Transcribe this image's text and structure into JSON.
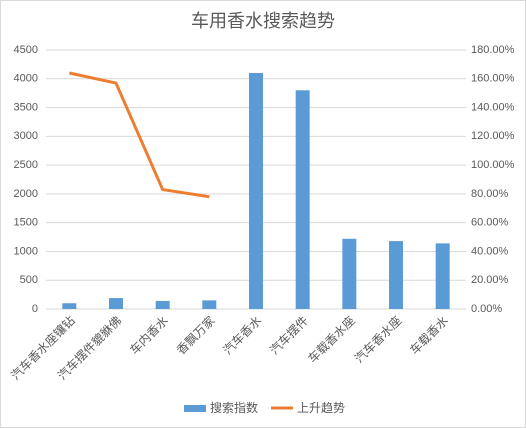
{
  "chart_data": {
    "type": "bar",
    "title": "车用香水搜索趋势",
    "categories": [
      "汽车香水座镶钻",
      "汽车摆件貔貅佛",
      "车内香水",
      "香飘万家",
      "汽车香水",
      "汽车摆件",
      "车载香水座",
      "汽车香水座",
      "车载香水"
    ],
    "series": [
      {
        "name": "搜索指数",
        "type": "bar",
        "color": "#5b9bd5",
        "values": [
          100,
          190,
          140,
          150,
          4100,
          3800,
          1220,
          1180,
          1140
        ]
      },
      {
        "name": "上升趋势",
        "type": "line",
        "axis": "y2",
        "color": "#ed7d31",
        "values": [
          164,
          157,
          83,
          78,
          null,
          null,
          null,
          null,
          null
        ]
      }
    ],
    "ylim": [
      0,
      4500
    ],
    "yticks": [
      0,
      500,
      1000,
      1500,
      2000,
      2500,
      3000,
      3500,
      4000,
      4500
    ],
    "y2lim": [
      0,
      180
    ],
    "y2ticks": [
      {
        "value": 0,
        "label": "0.00%"
      },
      {
        "value": 20,
        "label": "20.00%"
      },
      {
        "value": 40,
        "label": "40.00%"
      },
      {
        "value": 60,
        "label": "60.00%"
      },
      {
        "value": 80,
        "label": "80.00%"
      },
      {
        "value": 100,
        "label": "100.00%"
      },
      {
        "value": 120,
        "label": "120.00%"
      },
      {
        "value": 140,
        "label": "140.00%"
      },
      {
        "value": 160,
        "label": "160.00%"
      },
      {
        "value": 180,
        "label": "180.00%"
      }
    ],
    "grid": true,
    "legend": "bottom"
  }
}
